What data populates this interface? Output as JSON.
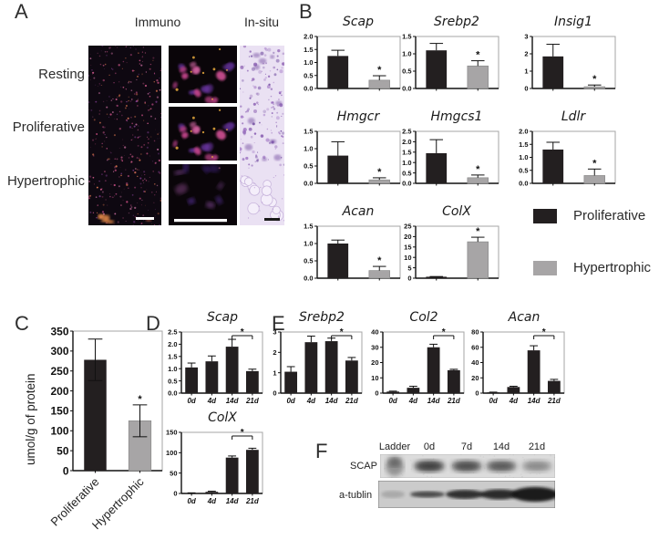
{
  "figure": {
    "panels": {
      "A": {
        "label": "A",
        "column_titles": [
          "Immuno",
          "In-situ"
        ],
        "row_labels": [
          "Resting",
          "Proliferative",
          "Hypertrophic"
        ]
      },
      "B": {
        "label": "B",
        "legend": [
          {
            "label": "Proliferative",
            "color": "#231f20"
          },
          {
            "label": "Hypertrophic",
            "color": "#a7a5a6"
          }
        ]
      },
      "C": {
        "label": "C"
      },
      "D": {
        "label": "D"
      },
      "E": {
        "label": "E"
      },
      "F": {
        "label": "F"
      }
    }
  },
  "western": {
    "lanes": [
      "Ladder",
      "0d",
      "7d",
      "14d",
      "21d"
    ],
    "rows": [
      {
        "label": "SCAP",
        "band_intensities": [
          0.55,
          0.72,
          0.62,
          0.55,
          0.3
        ]
      },
      {
        "label": "a-tublin",
        "band_intensities": [
          0.18,
          0.7,
          0.85,
          0.88,
          0.97
        ]
      }
    ]
  },
  "chart_data": [
    {
      "id": "B-Scap",
      "type": "bar",
      "title": "Scap",
      "categories": [
        "Proliferative",
        "Hypertrophic"
      ],
      "values": [
        1.25,
        0.32
      ],
      "errors": [
        0.22,
        0.17
      ],
      "bar_colors": [
        "#231f20",
        "#a7a5a6"
      ],
      "ylim": [
        0,
        2.0
      ],
      "yticks": [
        0,
        0.5,
        1.0,
        1.5,
        2.0
      ],
      "ytick_labels": [
        "0.0",
        "0.5",
        "1.0",
        "1.5",
        "2.0"
      ],
      "sig": {
        "type": "star",
        "bars": [
          1
        ],
        "symbol": "*"
      },
      "show_xlabels": false
    },
    {
      "id": "B-Srebp2",
      "type": "bar",
      "title": "Srebp2",
      "categories": [
        "Proliferative",
        "Hypertrophic"
      ],
      "values": [
        1.1,
        0.65
      ],
      "errors": [
        0.2,
        0.15
      ],
      "bar_colors": [
        "#231f20",
        "#a7a5a6"
      ],
      "ylim": [
        0,
        1.5
      ],
      "yticks": [
        0,
        0.5,
        1.0,
        1.5
      ],
      "ytick_labels": [
        "0.0",
        "0.5",
        "1.0",
        "1.5"
      ],
      "sig": {
        "type": "star",
        "bars": [
          1
        ],
        "symbol": "*"
      },
      "show_xlabels": false
    },
    {
      "id": "B-Insig1",
      "type": "bar",
      "title": "Insig1",
      "categories": [
        "Proliferative",
        "Hypertrophic"
      ],
      "values": [
        1.85,
        0.1
      ],
      "errors": [
        0.7,
        0.1
      ],
      "bar_colors": [
        "#231f20",
        "#a7a5a6"
      ],
      "ylim": [
        0,
        3
      ],
      "yticks": [
        0,
        1,
        2,
        3
      ],
      "ytick_labels": [
        "0",
        "1",
        "2",
        "3"
      ],
      "sig": {
        "type": "star",
        "bars": [
          1
        ],
        "symbol": "*"
      },
      "show_xlabels": false
    },
    {
      "id": "B-Hmgcr",
      "type": "bar",
      "title": "Hmgcr",
      "categories": [
        "Proliferative",
        "Hypertrophic"
      ],
      "values": [
        0.8,
        0.1
      ],
      "errors": [
        0.4,
        0.06
      ],
      "bar_colors": [
        "#231f20",
        "#a7a5a6"
      ],
      "ylim": [
        0,
        1.5
      ],
      "yticks": [
        0,
        0.5,
        1.0,
        1.5
      ],
      "ytick_labels": [
        "0.0",
        "0.5",
        "1.0",
        "1.5"
      ],
      "sig": {
        "type": "star",
        "bars": [
          1
        ],
        "symbol": "*"
      },
      "show_xlabels": false
    },
    {
      "id": "B-Hmgcs1",
      "type": "bar",
      "title": "Hmgcs1",
      "categories": [
        "Proliferative",
        "Hypertrophic"
      ],
      "values": [
        1.45,
        0.27
      ],
      "errors": [
        0.65,
        0.13
      ],
      "bar_colors": [
        "#231f20",
        "#a7a5a6"
      ],
      "ylim": [
        0,
        2.5
      ],
      "yticks": [
        0,
        0.5,
        1.0,
        1.5,
        2.0,
        2.5
      ],
      "ytick_labels": [
        "0.0",
        "0.5",
        "1.0",
        "1.5",
        "2.0",
        "2.5"
      ],
      "sig": {
        "type": "star",
        "bars": [
          1
        ],
        "symbol": "*"
      },
      "show_xlabels": false
    },
    {
      "id": "B-Ldlr",
      "type": "bar",
      "title": "Ldlr",
      "categories": [
        "Proliferative",
        "Hypertrophic"
      ],
      "values": [
        1.3,
        0.3
      ],
      "errors": [
        0.28,
        0.25
      ],
      "bar_colors": [
        "#231f20",
        "#a7a5a6"
      ],
      "ylim": [
        0,
        2.0
      ],
      "yticks": [
        0,
        0.5,
        1.0,
        1.5,
        2.0
      ],
      "ytick_labels": [
        "0.0",
        "0.5",
        "1.0",
        "1.5",
        "2.0"
      ],
      "sig": {
        "type": "star",
        "bars": [
          1
        ],
        "symbol": "*"
      },
      "show_xlabels": false
    },
    {
      "id": "B-Acan",
      "type": "bar",
      "title": "Acan",
      "categories": [
        "Proliferative",
        "Hypertrophic"
      ],
      "values": [
        1.0,
        0.22
      ],
      "errors": [
        0.1,
        0.12
      ],
      "bar_colors": [
        "#231f20",
        "#a7a5a6"
      ],
      "ylim": [
        0,
        1.5
      ],
      "yticks": [
        0,
        0.5,
        1.0,
        1.5
      ],
      "ytick_labels": [
        "0.0",
        "0.5",
        "1.0",
        "1.5"
      ],
      "sig": {
        "type": "star",
        "bars": [
          1
        ],
        "symbol": "*"
      },
      "show_xlabels": false
    },
    {
      "id": "B-ColX",
      "type": "bar",
      "title": "ColX",
      "categories": [
        "Proliferative",
        "Hypertrophic"
      ],
      "values": [
        0.7,
        17.5
      ],
      "errors": [
        0.1,
        2.2
      ],
      "bar_colors": [
        "#231f20",
        "#a7a5a6"
      ],
      "ylim": [
        0,
        25
      ],
      "yticks": [
        0,
        5,
        10,
        15,
        20,
        25
      ],
      "ytick_labels": [
        "0",
        "5",
        "10",
        "15",
        "20",
        "25"
      ],
      "sig": {
        "type": "star",
        "bars": [
          1
        ],
        "symbol": "*"
      },
      "show_xlabels": false
    },
    {
      "id": "C",
      "type": "bar",
      "title": "",
      "ylabel": "umol/g of protein",
      "categories": [
        "Proliferative",
        "Hypertrophic"
      ],
      "values": [
        278,
        125
      ],
      "errors": [
        52,
        40
      ],
      "bar_colors": [
        "#231f20",
        "#a7a5a6"
      ],
      "ylim": [
        0,
        350
      ],
      "yticks": [
        0,
        50,
        100,
        150,
        200,
        250,
        300,
        350
      ],
      "ytick_labels": [
        "0",
        "50",
        "100",
        "150",
        "200",
        "250",
        "300",
        "350"
      ],
      "sig": {
        "type": "star",
        "bars": [
          1
        ],
        "symbol": "*"
      },
      "show_xlabels": false,
      "xlabels_rotated": true,
      "error_style": "both",
      "tick_font": 12
    },
    {
      "id": "D-Scap",
      "type": "bar",
      "title": "Scap",
      "categories": [
        "0d",
        "4d",
        "14d",
        "21d"
      ],
      "values": [
        1.05,
        1.3,
        1.9,
        0.9
      ],
      "errors": [
        0.18,
        0.22,
        0.3,
        0.08
      ],
      "bar_colors": [
        "#231f20"
      ],
      "ylim": [
        0,
        2.5
      ],
      "yticks": [
        0,
        0.5,
        1.0,
        1.5,
        2.0,
        2.5
      ],
      "ytick_labels": [
        "0.0",
        "0.5",
        "1.0",
        "1.5",
        "2.0",
        "2.5"
      ],
      "sig": {
        "type": "bracket",
        "bars": [
          2,
          3
        ],
        "symbol": "*"
      },
      "show_xlabels": true
    },
    {
      "id": "D-ColX",
      "type": "bar",
      "title": "ColX",
      "categories": [
        "0d",
        "4d",
        "14d",
        "21d"
      ],
      "values": [
        1,
        4,
        88,
        107
      ],
      "errors": [
        0.5,
        1.5,
        4,
        4
      ],
      "bar_colors": [
        "#231f20"
      ],
      "ylim": [
        0,
        150
      ],
      "yticks": [
        0,
        50,
        100,
        150
      ],
      "ytick_labels": [
        "0",
        "50",
        "100",
        "150"
      ],
      "sig": {
        "type": "bracket",
        "bars": [
          2,
          3
        ],
        "symbol": "*"
      },
      "show_xlabels": true
    },
    {
      "id": "E-Srebp2",
      "type": "bar",
      "title": "Srebp2",
      "categories": [
        "0d",
        "4d",
        "14d",
        "21d"
      ],
      "values": [
        1.05,
        2.5,
        2.55,
        1.6
      ],
      "errors": [
        0.25,
        0.3,
        0.15,
        0.15
      ],
      "bar_colors": [
        "#231f20"
      ],
      "ylim": [
        0,
        3
      ],
      "yticks": [
        0,
        1,
        2,
        3
      ],
      "ytick_labels": [
        "0",
        "1",
        "2",
        "3"
      ],
      "sig": {
        "type": "bracket",
        "bars": [
          2,
          3
        ],
        "symbol": "*"
      },
      "show_xlabels": true
    },
    {
      "id": "E-Col2",
      "type": "bar",
      "title": "Col2",
      "categories": [
        "0d",
        "4d",
        "14d",
        "21d"
      ],
      "values": [
        1,
        3.5,
        30,
        15
      ],
      "errors": [
        0.3,
        1,
        2,
        0.6
      ],
      "bar_colors": [
        "#231f20"
      ],
      "ylim": [
        0,
        40
      ],
      "yticks": [
        0,
        10,
        20,
        30,
        40
      ],
      "ytick_labels": [
        "0",
        "10",
        "20",
        "30",
        "40"
      ],
      "sig": {
        "type": "bracket",
        "bars": [
          2,
          3
        ],
        "symbol": "*"
      },
      "show_xlabels": true
    },
    {
      "id": "E-Acan",
      "type": "bar",
      "title": "Acan",
      "categories": [
        "0d",
        "4d",
        "14d",
        "21d"
      ],
      "values": [
        1,
        8,
        56,
        16
      ],
      "errors": [
        0.3,
        1,
        6,
        2
      ],
      "bar_colors": [
        "#231f20"
      ],
      "ylim": [
        0,
        80
      ],
      "yticks": [
        0,
        20,
        40,
        60,
        80
      ],
      "ytick_labels": [
        "0",
        "20",
        "40",
        "60",
        "80"
      ],
      "sig": {
        "type": "bracket",
        "bars": [
          2,
          3
        ],
        "symbol": "*"
      },
      "show_xlabels": true
    }
  ]
}
